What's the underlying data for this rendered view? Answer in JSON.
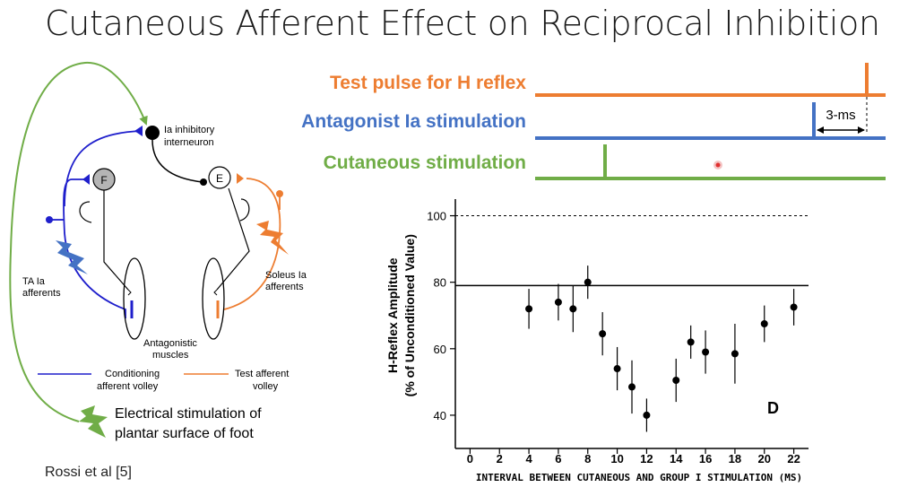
{
  "slide": {
    "title": "Cutaneous Afferent Effect on Reciprocal Inhibition",
    "citation": "Rossi et al [5]"
  },
  "colors": {
    "orange": "#ED7D31",
    "blue": "#4472C4",
    "green": "#70AD47",
    "dark_blue": "#1F1FCC",
    "red_dot": "#E03030"
  },
  "timing": {
    "test_pulse_label": "Test pulse for H reflex",
    "antagonist_label": "Antagonist Ia stimulation",
    "cutaneous_label": "Cutaneous stimulation",
    "interval_label": "3-ms"
  },
  "circuit": {
    "ia_interneuron_line1": "Ia inhibitory",
    "ia_interneuron_line2": "interneuron",
    "flexor_label": "F",
    "extensor_label": "E",
    "ta_label_line1": "TA Ia",
    "ta_label_line2": "afferents",
    "soleus_label_line1": "Soleus Ia",
    "soleus_label_line2": "afferents",
    "muscles_line1": "Antagonistic",
    "muscles_line2": "muscles",
    "conditioning_line1": "Conditioning",
    "conditioning_line2": "afferent volley",
    "test_line1": "Test afferent",
    "test_line2": "volley",
    "plantar_line1": "Electrical stimulation of",
    "plantar_line2": "plantar surface of foot",
    "plantar_icon": "lightning-bolt-icon"
  },
  "chart_data": {
    "type": "scatter",
    "ylabel_line1": "H-Reflex Amplitude",
    "ylabel_line2": "(% of Unconditioned Value)",
    "xlabel": "Interval between cutaneous and group I stimulation (ms)",
    "panel_label": "D",
    "x_ticks": [
      0,
      2,
      4,
      6,
      8,
      10,
      12,
      14,
      16,
      18,
      20,
      22
    ],
    "y_ticks": [
      40,
      60,
      80,
      100
    ],
    "xlim": [
      -1,
      23
    ],
    "ylim": [
      30,
      105
    ],
    "reference_dashed_y": 100,
    "baseline_solid_y": 79,
    "points": [
      {
        "x": 4,
        "y": 72,
        "err": 6
      },
      {
        "x": 6,
        "y": 74,
        "err": 5.5
      },
      {
        "x": 7,
        "y": 72,
        "err": 7
      },
      {
        "x": 8,
        "y": 80,
        "err": 5
      },
      {
        "x": 9,
        "y": 64.5,
        "err": 6.5
      },
      {
        "x": 10,
        "y": 54,
        "err": 6.5
      },
      {
        "x": 11,
        "y": 48.5,
        "err": 8
      },
      {
        "x": 12,
        "y": 40,
        "err": 5
      },
      {
        "x": 14,
        "y": 50.5,
        "err": 6.5
      },
      {
        "x": 15,
        "y": 62,
        "err": 5
      },
      {
        "x": 16,
        "y": 59,
        "err": 6.5
      },
      {
        "x": 18,
        "y": 58.5,
        "err": 9
      },
      {
        "x": 20,
        "y": 67.5,
        "err": 5.5
      },
      {
        "x": 22,
        "y": 72.5,
        "err": 5.5
      }
    ]
  }
}
